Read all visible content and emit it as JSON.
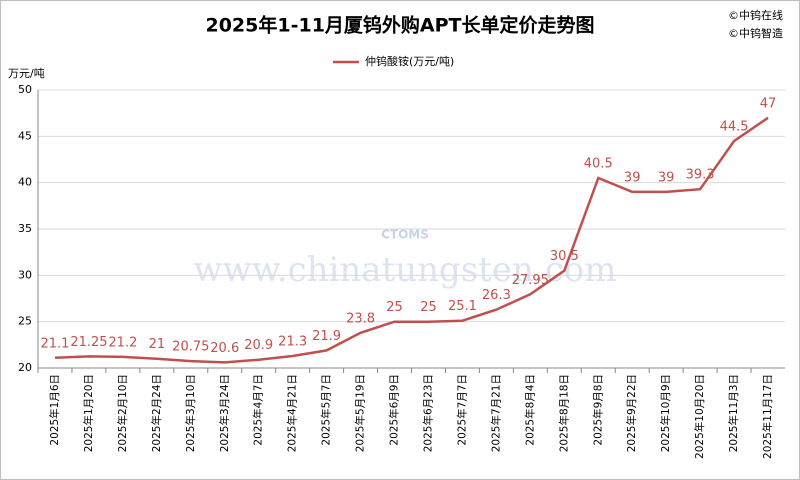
{
  "chart_data": {
    "type": "line",
    "title": "2025年1-11月厦钨外购APT长单定价走势图",
    "credits": [
      "©中钨在线",
      "©中钨智造"
    ],
    "y_axis_label": "万元/吨",
    "watermark": [
      "CTOMS",
      "www.chinatungsten.com"
    ],
    "categories": [
      "2025年1月6日",
      "2025年1月20日",
      "2025年2月10日",
      "2025年2月24日",
      "2025年3月10日",
      "2025年3月24日",
      "2025年4月7日",
      "2025年4月21日",
      "2025年5月7日",
      "2025年5月19日",
      "2025年6月9日",
      "2025年6月23日",
      "2025年7月7日",
      "2025年7月21日",
      "2025年8月4日",
      "2025年8月18日",
      "2025年9月8日",
      "2025年9月22日",
      "2025年10月9日",
      "2025年10月20日",
      "2025年11月3日",
      "2025年11月17日"
    ],
    "series": [
      {
        "name": "仲钨酸铵(万元/吨)",
        "color": "#c0504d",
        "values": [
          21.1,
          21.25,
          21.2,
          21,
          20.75,
          20.6,
          20.9,
          21.3,
          21.9,
          23.8,
          25,
          25,
          25.1,
          26.3,
          27.95,
          30.5,
          40.5,
          39,
          39,
          39.3,
          44.5,
          47
        ]
      }
    ],
    "ylim": [
      20,
      50
    ],
    "yticks": [
      20,
      25,
      30,
      35,
      40,
      45,
      50
    ],
    "grid": true,
    "legend": "top"
  }
}
